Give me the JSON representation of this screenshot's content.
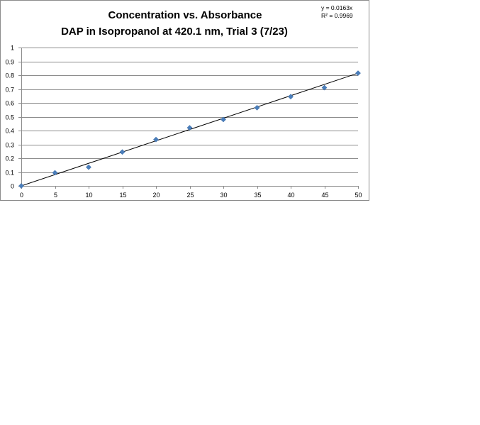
{
  "chart_data": {
    "type": "scatter",
    "title_line1": "Concentration vs. Absorbance",
    "title_line2": "DAP in Isopropanol at 420.1 nm, Trial 3 (7/23)",
    "xlabel": "",
    "ylabel": "",
    "xlim": [
      0,
      50
    ],
    "ylim": [
      0,
      1
    ],
    "xticks": [
      0,
      5,
      10,
      15,
      20,
      25,
      30,
      35,
      40,
      45,
      50
    ],
    "yticks": [
      0,
      0.1,
      0.2,
      0.3,
      0.4,
      0.5,
      0.6,
      0.7,
      0.8,
      0.9,
      1
    ],
    "grid": "horizontal",
    "x": [
      0,
      5,
      10,
      15,
      20,
      25,
      30,
      35,
      40,
      45,
      50
    ],
    "y": [
      0,
      0.095,
      0.135,
      0.245,
      0.335,
      0.42,
      0.48,
      0.565,
      0.645,
      0.71,
      0.815
    ],
    "marker_color": "#4a7ebb",
    "trendline": {
      "slope": 0.0163,
      "intercept": 0,
      "color": "#000000",
      "equation": "y = 0.0163x",
      "r_squared": "R² = 0.9969"
    }
  }
}
